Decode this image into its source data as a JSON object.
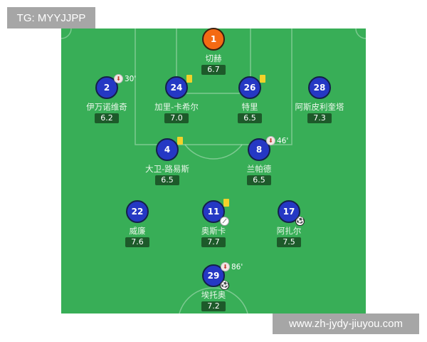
{
  "watermarks": {
    "top_left": "TG: MYYJJPP",
    "bottom_right": "www.zh-jydy-jiuyou.com"
  },
  "colors": {
    "pitch": "#38ae57",
    "player": "#2538c4",
    "goalkeeper": "#f46a13",
    "yellow_card": "#f2d22a",
    "rating_bg": "#1d5a2a"
  },
  "players": [
    {
      "number": "1",
      "name": "切赫",
      "rating": "6.7"
    },
    {
      "number": "2",
      "name": "伊万诺维奇",
      "rating": "6.2",
      "sub_minute": "30'"
    },
    {
      "number": "24",
      "name": "加里-卡希尔",
      "rating": "7.0",
      "yellow_card": true
    },
    {
      "number": "26",
      "name": "特里",
      "rating": "6.5",
      "yellow_card": true
    },
    {
      "number": "28",
      "name": "阿斯皮利奎塔",
      "rating": "7.3"
    },
    {
      "number": "4",
      "name": "大卫-路易斯",
      "rating": "6.5",
      "yellow_card": true
    },
    {
      "number": "8",
      "name": "兰帕德",
      "rating": "6.5",
      "sub_minute": "46'"
    },
    {
      "number": "22",
      "name": "威廉",
      "rating": "7.6"
    },
    {
      "number": "11",
      "name": "奥斯卡",
      "rating": "7.7",
      "yellow_card": true,
      "assist": true
    },
    {
      "number": "17",
      "name": "阿扎尔",
      "rating": "7.5",
      "goal": true
    },
    {
      "number": "29",
      "name": "埃托奥",
      "rating": "7.2",
      "sub_minute": "86'",
      "goal": true
    }
  ]
}
